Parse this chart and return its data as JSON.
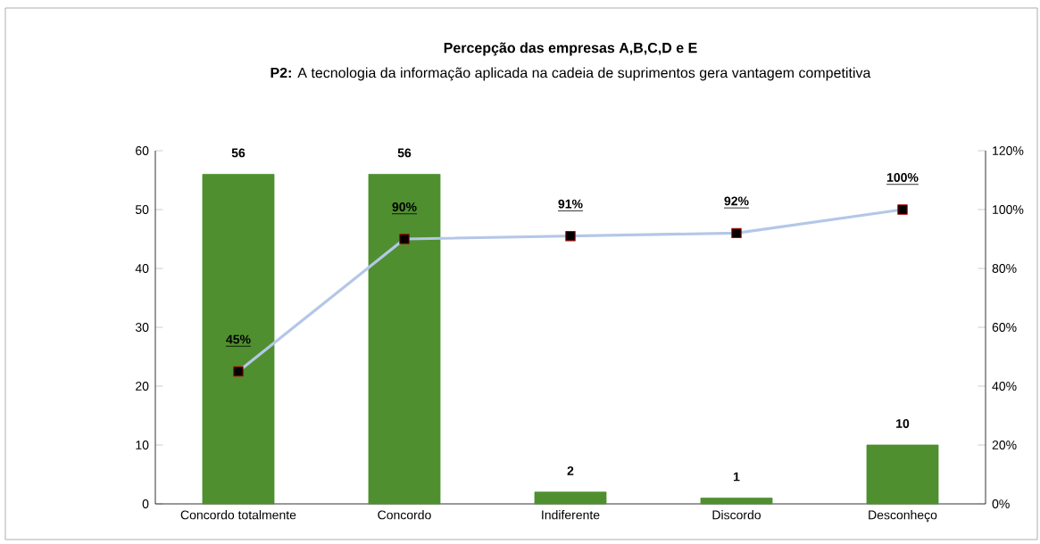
{
  "chart_data": {
    "type": "bar",
    "title": "Percepção das empresas A,B,C,D e E",
    "subtitle": "**P2:** A tecnologia da informação aplicada na cadeia de suprimentos gera vantagem competitiva",
    "categories": [
      "Concordo totalmente",
      "Concordo",
      "Indiferente",
      "Discordo",
      "Desconheço"
    ],
    "series": [
      {
        "color": "#4f8f2f",
        "values": [
          56,
          56,
          2,
          1,
          10
        ],
        "value_labels": [
          "56",
          "56",
          "2",
          "1",
          "10"
        ]
      },
      {
        "type": "line",
        "axis": "y2",
        "color": "#b4c7e7",
        "marker": "square",
        "values": [
          45,
          90,
          91,
          92,
          100
        ],
        "value_labels": [
          "45%",
          "90%",
          "91%",
          "92%",
          "100%"
        ]
      }
    ],
    "ylim": [
      0,
      60
    ],
    "yticks": [
      0,
      10,
      20,
      30,
      40,
      50,
      60
    ],
    "y2lim": [
      0,
      120
    ],
    "y2ticks": [
      {
        "value": 0,
        "label": "0%"
      },
      {
        "value": 20,
        "label": "20%"
      },
      {
        "value": 40,
        "label": "40%"
      },
      {
        "value": 60,
        "label": "60%"
      },
      {
        "value": 80,
        "label": "80%"
      },
      {
        "value": 100,
        "label": "100%"
      },
      {
        "value": 120,
        "label": "120%"
      }
    ],
    "grid": false
  }
}
